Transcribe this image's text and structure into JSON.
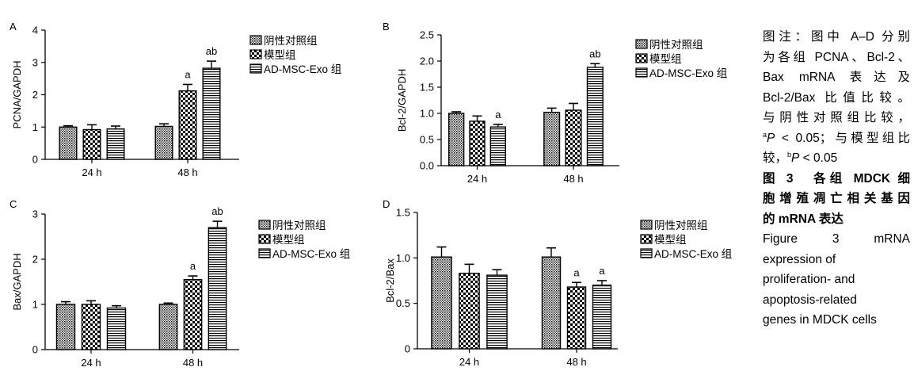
{
  "colors": {
    "ink": "#000000",
    "bar_fill": "#ffffff"
  },
  "patterns": [
    "dots",
    "checker",
    "hstripe"
  ],
  "legend_entries": [
    "阴性对照组",
    "模型组",
    "AD-MSC-Exo 组"
  ],
  "chart_data": [
    {
      "panel": "A",
      "type": "bar",
      "ylabel": "PCNA/GAPDH",
      "ylim": [
        0,
        4
      ],
      "yticks": [
        "0",
        "1",
        "2",
        "3",
        "4"
      ],
      "categories": [
        "24 h",
        "48 h"
      ],
      "series": [
        {
          "name": "阴性对照组",
          "values": [
            1.0,
            1.02
          ],
          "errors": [
            0.04,
            0.08
          ]
        },
        {
          "name": "模型组",
          "values": [
            0.92,
            2.12
          ],
          "errors": [
            0.15,
            0.2
          ]
        },
        {
          "name": "AD-MSC-Exo 组",
          "values": [
            0.94,
            2.82
          ],
          "errors": [
            0.09,
            0.22
          ]
        }
      ],
      "annotations": [
        {
          "group": 1,
          "series": 1,
          "text": "a"
        },
        {
          "group": 1,
          "series": 2,
          "text": "ab"
        }
      ]
    },
    {
      "panel": "B",
      "type": "bar",
      "ylabel": "Bcl-2/GAPDH",
      "ylim": [
        0,
        2.5
      ],
      "yticks": [
        "0.0",
        "0.5",
        "1.0",
        "1.5",
        "2.0",
        "2.5"
      ],
      "categories": [
        "24 h",
        "48 h"
      ],
      "series": [
        {
          "name": "阴性对照组",
          "values": [
            1.0,
            1.02
          ],
          "errors": [
            0.03,
            0.08
          ]
        },
        {
          "name": "模型组",
          "values": [
            0.85,
            1.06
          ],
          "errors": [
            0.1,
            0.13
          ]
        },
        {
          "name": "AD-MSC-Exo 组",
          "values": [
            0.74,
            1.88
          ],
          "errors": [
            0.05,
            0.07
          ]
        }
      ],
      "annotations": [
        {
          "group": 0,
          "series": 2,
          "text": "a"
        },
        {
          "group": 1,
          "series": 2,
          "text": "ab"
        }
      ]
    },
    {
      "panel": "C",
      "type": "bar",
      "ylabel": "Bax/GAPDH",
      "ylim": [
        0,
        3
      ],
      "yticks": [
        "0",
        "1",
        "2",
        "3"
      ],
      "categories": [
        "24 h",
        "48 h"
      ],
      "series": [
        {
          "name": "阴性对照组",
          "values": [
            1.0,
            1.0
          ],
          "errors": [
            0.06,
            0.03
          ]
        },
        {
          "name": "模型组",
          "values": [
            1.0,
            1.55
          ],
          "errors": [
            0.08,
            0.08
          ]
        },
        {
          "name": "AD-MSC-Exo 组",
          "values": [
            0.92,
            2.7
          ],
          "errors": [
            0.05,
            0.14
          ]
        }
      ],
      "annotations": [
        {
          "group": 1,
          "series": 1,
          "text": "a"
        },
        {
          "group": 1,
          "series": 2,
          "text": "ab"
        }
      ]
    },
    {
      "panel": "D",
      "type": "bar",
      "ylabel": "Bcl-2/Bax",
      "ylim": [
        0,
        1.5
      ],
      "yticks": [
        "0",
        "0.5",
        "1.0",
        "1.5"
      ],
      "categories": [
        "24 h",
        "48 h"
      ],
      "series": [
        {
          "name": "阴性对照组",
          "values": [
            1.01,
            1.01
          ],
          "errors": [
            0.11,
            0.1
          ]
        },
        {
          "name": "模型组",
          "values": [
            0.83,
            0.68
          ],
          "errors": [
            0.1,
            0.05
          ]
        },
        {
          "name": "AD-MSC-Exo 组",
          "values": [
            0.81,
            0.7
          ],
          "errors": [
            0.06,
            0.05
          ]
        }
      ],
      "annotations": [
        {
          "group": 1,
          "series": 1,
          "text": "a"
        },
        {
          "group": 1,
          "series": 2,
          "text": "a"
        }
      ]
    }
  ],
  "caption": {
    "note_lines": [
      "图注：图中 A–D 分别",
      "为各组 PCNA、Bcl-2、",
      "Bax mRNA 表达及",
      "Bcl-2/Bax 比值比较。",
      "与阴性对照组比较，"
    ],
    "sig_a_sup": "a",
    "sig_a_p": "P",
    "sig_a_rest": " < 0.05；与模型组比",
    "sig_b_pre": "较，",
    "sig_b_sup": "b",
    "sig_b_p": "P",
    "sig_b_rest": " < 0.05",
    "title_cn_lines": [
      "图 3　各组 MDCK 细",
      "胞增殖凋亡相关基因",
      "的 mRNA 表达"
    ],
    "title_en_lines": [
      "Figure 3   mRNA",
      "expression of",
      "proliferation- and",
      "apoptosis-related",
      "genes in MDCK cells"
    ]
  }
}
